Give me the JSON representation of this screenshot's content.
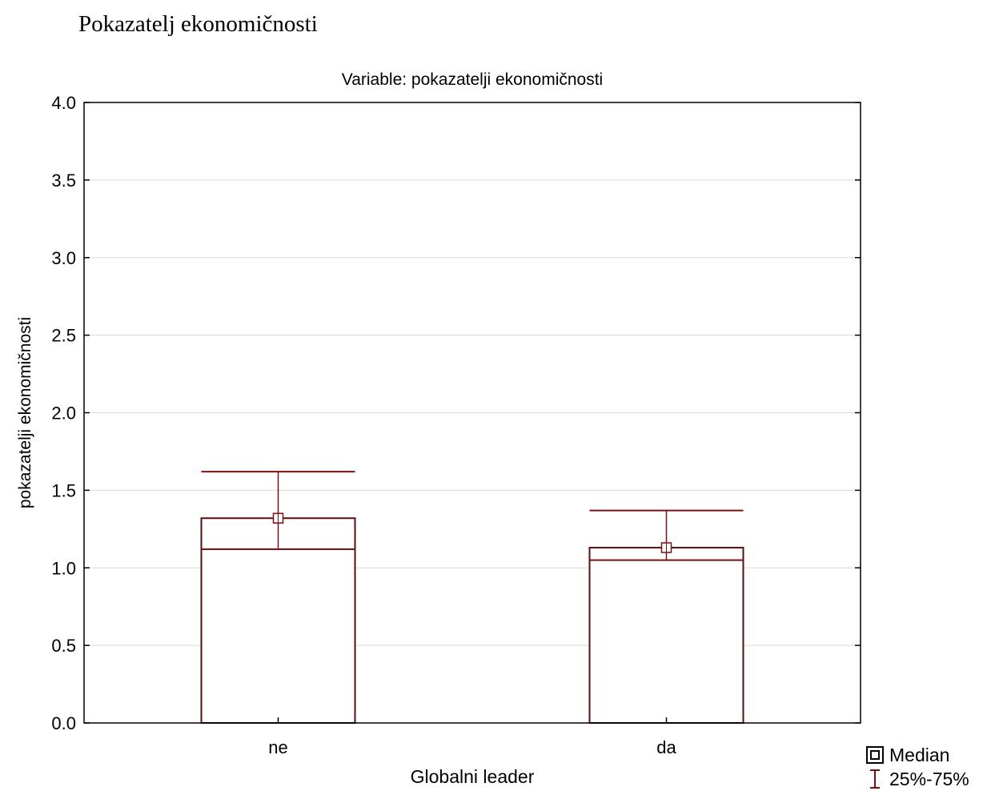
{
  "page": {
    "heading": "Pokazatelj ekonomičnosti"
  },
  "colors": {
    "primary": "#7a1111",
    "box": "#5a0e0e",
    "grid": "#d9d9d9",
    "axis": "#000000"
  },
  "chart_data": {
    "type": "bar",
    "title": "Variable: pokazatelji ekonomičnosti",
    "xlabel": "Globalni leader",
    "ylabel": "pokazatelji ekonomičnosti",
    "ylim": [
      0,
      4
    ],
    "yticks": [
      "0.0",
      "0.5",
      "1.0",
      "1.5",
      "2.0",
      "2.5",
      "3.0",
      "3.5",
      "4.0"
    ],
    "grid": true,
    "categories": [
      "ne",
      "da"
    ],
    "series": [
      {
        "name": "Median",
        "values": [
          1.32,
          1.13
        ]
      },
      {
        "name": "25%-75%",
        "lower": [
          1.12,
          1.05
        ],
        "upper": [
          1.62,
          1.37
        ]
      }
    ],
    "legend_position": "bottom-right"
  }
}
